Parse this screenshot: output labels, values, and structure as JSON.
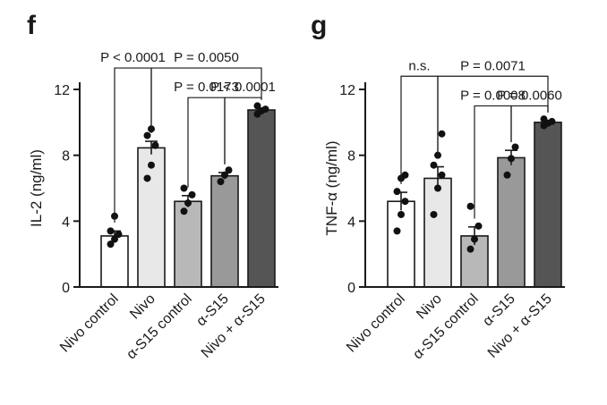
{
  "chart_data": [
    {
      "type": "bar",
      "panel": "f",
      "ylabel": "IL-2 (ng/ml)",
      "xlabel": "",
      "title": "",
      "ylim": [
        0,
        12
      ],
      "yticks": [
        0,
        4,
        8,
        12
      ],
      "categories": [
        "Nivo control",
        "Nivo",
        "α-S15 control",
        "α-S15",
        "Nivo + α-S15"
      ],
      "values": [
        3.1,
        8.45,
        5.2,
        6.75,
        10.75
      ],
      "errors": [
        0.3,
        0.4,
        0.35,
        0.2,
        0.12
      ],
      "fills": [
        "#ffffff",
        "#e8e8e8",
        "#b8b8b8",
        "#999999",
        "#555555"
      ],
      "points": [
        [
          2.6,
          2.9,
          3.2,
          3.4,
          4.3
        ],
        [
          6.6,
          7.4,
          8.6,
          9.2,
          9.6
        ],
        [
          4.6,
          5.1,
          5.6,
          6.0
        ],
        [
          6.4,
          6.8,
          7.1
        ],
        [
          10.5,
          10.7,
          10.8,
          11.0
        ]
      ],
      "comparisons": [
        {
          "from": 0,
          "to": 1,
          "label": "P < 0.0001",
          "level": 13.3
        },
        {
          "from": 1,
          "to": 4,
          "label": "P = 0.0050",
          "level": 13.3
        },
        {
          "from": 2,
          "to": 3,
          "label": "P = 0.0173",
          "level": 11.5
        },
        {
          "from": 3,
          "to": 4,
          "label": "P < 0.0001",
          "level": 11.5
        }
      ]
    },
    {
      "type": "bar",
      "panel": "g",
      "ylabel": "TNF-α (ng/ml)",
      "xlabel": "",
      "title": "",
      "ylim": [
        0,
        12
      ],
      "yticks": [
        0,
        4,
        8,
        12
      ],
      "categories": [
        "Nivo control",
        "Nivo",
        "α-S15 control",
        "α-S15",
        "Nivo + α-S15"
      ],
      "values": [
        5.2,
        6.6,
        3.1,
        7.85,
        10.0
      ],
      "errors": [
        0.55,
        0.7,
        0.55,
        0.45,
        0.1
      ],
      "fills": [
        "#ffffff",
        "#e8e8e8",
        "#b8b8b8",
        "#999999",
        "#555555"
      ],
      "points": [
        [
          3.4,
          4.4,
          5.2,
          5.8,
          6.6,
          6.8
        ],
        [
          4.4,
          6.0,
          6.8,
          7.4,
          8.0,
          9.3
        ],
        [
          2.3,
          2.9,
          3.7,
          4.9
        ],
        [
          6.8,
          7.8,
          8.5
        ],
        [
          9.8,
          9.95,
          10.05,
          10.2
        ]
      ],
      "comparisons": [
        {
          "from": 0,
          "to": 1,
          "label": "n.s.",
          "level": 12.8
        },
        {
          "from": 1,
          "to": 4,
          "label": "P = 0.0071",
          "level": 12.8
        },
        {
          "from": 2,
          "to": 3,
          "label": "P = 0.0008",
          "level": 11.0
        },
        {
          "from": 3,
          "to": 4,
          "label": "P = 0.0060",
          "level": 11.0
        }
      ]
    }
  ]
}
